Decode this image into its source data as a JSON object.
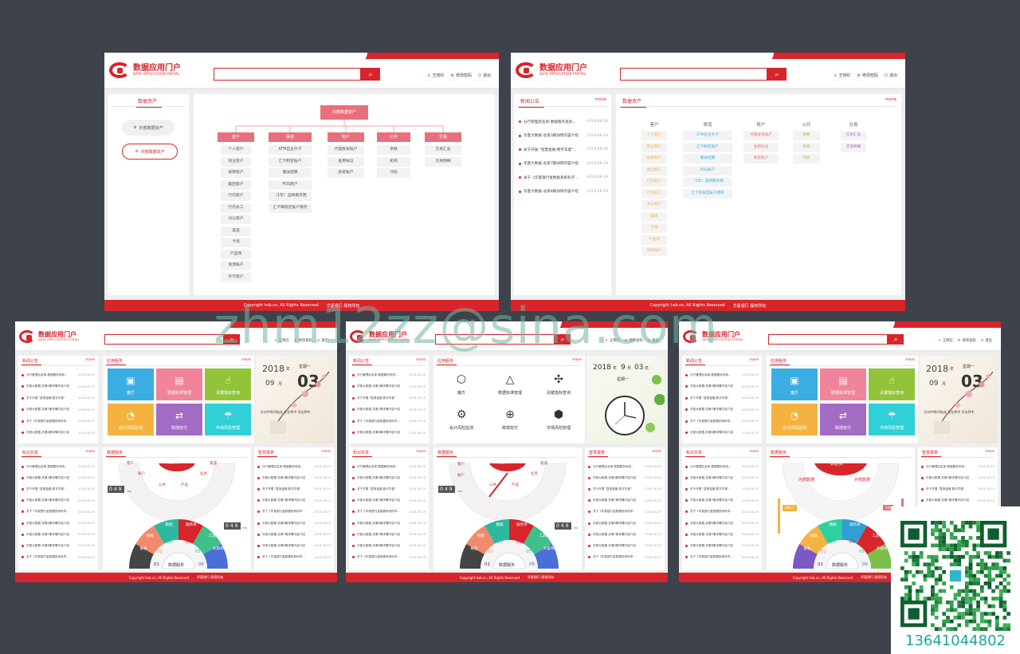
{
  "app": {
    "logo_cn": "数据应用门户",
    "logo_en": "DATA APPLICATION PORTAL"
  },
  "user": {
    "name": "王晓红",
    "change_pwd": "修改密码",
    "logout": "退出"
  },
  "footer": {
    "copyright": "Copyright  hsb.cn,  All Rights Reserved",
    "bank": "华夏银行  版权所有"
  },
  "watermark": "zhm12zz@sina.com",
  "contact_phone": "13641044802",
  "screen1": {
    "side_title": "数据资产",
    "btn_external": "外部数据资产",
    "btn_internal": "内部数据资产",
    "root": "内部数据资产",
    "branches": [
      {
        "head": "客户",
        "items": [
          "个人客户",
          "同业客户",
          "核算客户",
          "集团客户",
          "行内客户",
          "行内员工",
          "对公客户",
          "渠道",
          "卡场",
          "产品场",
          "资源账户",
          "外币客户"
        ]
      },
      {
        "head": "渠道",
        "items": [
          "ATM自主外卡",
          "汇卡制定账户",
          "催收结算",
          "POS商户",
          "（1年）品牌服务费",
          "汇卡审核定账户费存"
        ]
      },
      {
        "head": "账户",
        "items": [
          "代理投资账户",
          "金用协议",
          "系统账户"
        ]
      },
      {
        "head": "公共",
        "items": [
          "参数",
          "机构",
          "代码"
        ]
      },
      {
        "head": "交易",
        "items": [
          "交易汇总",
          "交易明细"
        ]
      }
    ]
  },
  "screen2": {
    "news_title": "新闻公告",
    "more": "more",
    "news": [
      {
        "t": "分行管理后名单-数据服务系统...",
        "d": "2018-06-29"
      },
      {
        "t": "华夏大数据-总第3期详情内容介绍",
        "d": "2018-06-29"
      },
      {
        "t": "关于开展 \"智慧金融 数字华夏\"...",
        "d": "2018-06-29"
      },
      {
        "t": "华夏大数据-总第7期详情内容介绍",
        "d": "2018-06-29"
      },
      {
        "t": "关于《华夏银行金数据系统科学...",
        "d": "2018-06-29"
      },
      {
        "t": "华夏大数据-总第8期详情内容介绍",
        "d": "2018-06-29"
      }
    ],
    "asset_title": "数据资产",
    "cols": [
      {
        "head": "客户",
        "items": [
          "个人客户",
          "同业客户",
          "核算客户",
          "集团客户",
          "行内客户",
          "行内员工",
          "对公客户",
          "渠道",
          "卡场",
          "产品场",
          "资源账户"
        ]
      },
      {
        "head": "渠道",
        "items": [
          "ATM自主外卡",
          "汇卡制定账户",
          "催收结算",
          "POS商户",
          "（1年）品牌服务费",
          "汇卡审核定账户费存"
        ]
      },
      {
        "head": "账户",
        "items": [
          "代理投资账户",
          "金用协议",
          "系统账户"
        ]
      },
      {
        "head": "公共",
        "items": [
          "参数",
          "机构",
          "代码"
        ]
      },
      {
        "head": "交易",
        "items": [
          "交易汇总",
          "交易明细"
        ]
      }
    ]
  },
  "dash": {
    "news_title": "新闻公告",
    "app_title": "应用服务",
    "knowledge_title": "知识共享",
    "data_service": "数据服务",
    "smart_report": "智慧报表",
    "more": "more",
    "news": [
      {
        "t": "分行管理后名单-数据服务系统...",
        "d": "2018-06-29"
      },
      {
        "t": "华夏大数据-总第3期详情内容介绍",
        "d": "2018-06-29"
      },
      {
        "t": "关于开展 \"智慧金融 数字华夏\"",
        "d": "2018-06-29"
      },
      {
        "t": "华夏大数据-总第7期详情内容介绍",
        "d": "2018-06-29"
      },
      {
        "t": "关于《华夏银行金数据系统科学...",
        "d": "2018-06-29"
      },
      {
        "t": "华夏大数据-总第8期详情内容介绍",
        "d": "2018-06-29"
      }
    ],
    "news_long": [
      {
        "t": "分行管理后名单-数据服务系统...",
        "d": "2018-06-29"
      },
      {
        "t": "华夏大数据-总第3期详情内容介绍",
        "d": "2018-06-29"
      },
      {
        "t": "关于开展 \"智慧金融 数字华夏\"",
        "d": "2018-06-29"
      },
      {
        "t": "华夏大数据-总第7期详情内容介绍",
        "d": "2018-06-29"
      },
      {
        "t": "关于《华夏银行金数据系统科学...",
        "d": "2018-06-29"
      },
      {
        "t": "华夏大数据-总第8期详情内容介绍",
        "d": "2018-06-29"
      },
      {
        "t": "华夏大数据-总第7期详情内容介绍",
        "d": "2018-06-29"
      },
      {
        "t": "华夏大数据-总第8期详情内容介绍",
        "d": "2018-06-29"
      },
      {
        "t": "关于《华夏银行金数据系统科学...",
        "d": "2018-06-29"
      }
    ],
    "tiles": [
      "魔方",
      "数据标准管理",
      "关键指标查询",
      "会计风险监测",
      "跨境收付",
      "市场风险管理"
    ],
    "tile_colors": [
      "#3aaee2",
      "#f0849a",
      "#92c43a",
      "#f4b340",
      "#a26bc4",
      "#2fd0d6"
    ],
    "tile_icons": [
      "▣",
      "▤",
      "☝",
      "◔",
      "⇄",
      "☂"
    ],
    "cal": {
      "year": "2018",
      "year_unit": "年",
      "month": "09",
      "month_unit": "月",
      "day": "03",
      "weekday": "星期一",
      "quote": "忆对中秋丹桂丛 花在杯中 月在杯中"
    },
    "cal2": {
      "year": "2018",
      "year_unit": "年",
      "month": "9",
      "month_unit": "月",
      "day": "03",
      "day_unit": "日",
      "weekday": "星期一"
    },
    "gauge": {
      "title": "数据资产",
      "items": [
        "客户",
        "账户",
        "公共",
        "产品",
        "业务",
        "渠道"
      ],
      "counter": "049",
      "counter_unit": "ms"
    },
    "gauge3": {
      "title": "数据资产",
      "internal": "内部数据",
      "external": "外部数据",
      "flag1": "283人",
      "flag2": "53k"
    },
    "rainbow": {
      "title": "数据服务",
      "labels": [
        "报表",
        "挖掘",
        "数据",
        "服务单",
        "工具",
        "外部系统"
      ],
      "nums": [
        "01",
        "02",
        "03",
        "04",
        "05",
        "06"
      ],
      "counter": "049",
      "counter_unit": "ms"
    }
  }
}
